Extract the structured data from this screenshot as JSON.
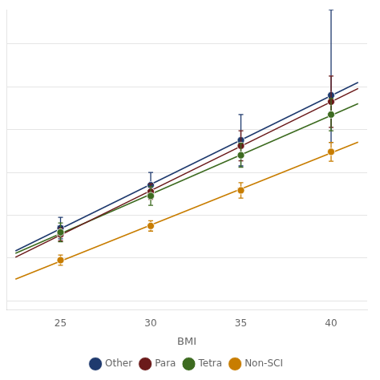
{
  "chart_data": {
    "type": "scatter",
    "xlabel": "BMI",
    "x": [
      25,
      30,
      35,
      40
    ],
    "series": [
      {
        "name": "Other",
        "color": "#1f3a6e",
        "values": [
          0.37,
          0.47,
          0.575,
          0.68
        ],
        "yerr_low": [
          0.025,
          0.03,
          0.06,
          0.11
        ],
        "yerr_high": [
          0.025,
          0.03,
          0.06,
          0.2
        ],
        "trend_values": [
          0.31675,
          0.71005
        ]
      },
      {
        "name": "Para",
        "color": "#6b1a1a",
        "values": [
          0.355,
          0.455,
          0.562,
          0.665
        ],
        "yerr_low": [
          0.015,
          0.018,
          0.035,
          0.06
        ],
        "yerr_high": [
          0.015,
          0.018,
          0.035,
          0.06
        ],
        "trend_values": [
          0.30185,
          0.69591
        ]
      },
      {
        "name": "Tetra",
        "color": "#3d6b20",
        "values": [
          0.36,
          0.445,
          0.54,
          0.635
        ],
        "yerr_low": [
          0.022,
          0.022,
          0.028,
          0.038
        ],
        "yerr_high": [
          0.022,
          0.022,
          0.028,
          0.038
        ],
        "trend_values": [
          0.311,
          0.6606
        ]
      },
      {
        "name": "Non-SCI",
        "color": "#c87d00",
        "values": [
          0.295,
          0.375,
          0.458,
          0.548
        ],
        "yerr_low": [
          0.012,
          0.012,
          0.018,
          0.022
        ],
        "yerr_high": [
          0.012,
          0.012,
          0.018,
          0.022
        ],
        "trend_values": [
          0.2506,
          0.57056
        ]
      }
    ],
    "trend_x": [
      22.5,
      41.5
    ],
    "xlim": [
      22,
      42
    ],
    "xticks": [
      25,
      30,
      35,
      40
    ],
    "ylim": [
      0.18,
      0.88
    ],
    "yticks": [
      0.2,
      0.3,
      0.4,
      0.5,
      0.6,
      0.7,
      0.8
    ],
    "grid": "y",
    "legend": "bottom",
    "tick_labels": "x",
    "marker": "circle",
    "line_style": "solid"
  }
}
